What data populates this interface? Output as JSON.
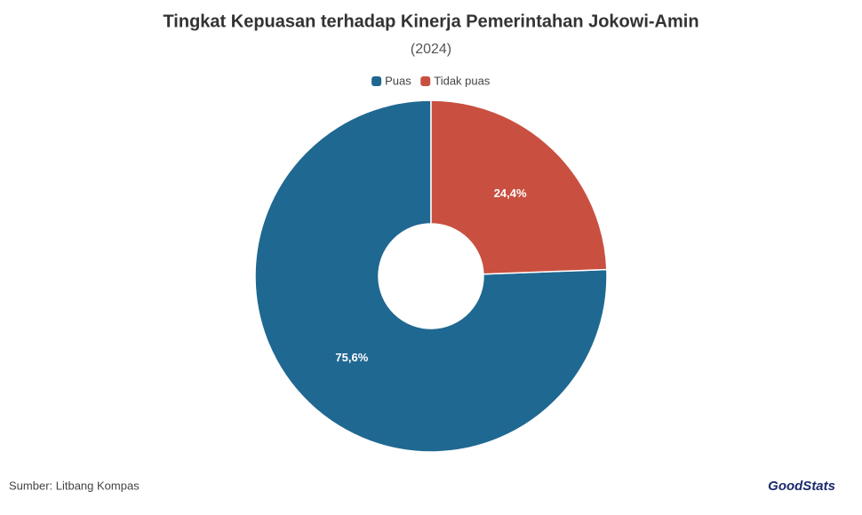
{
  "chart_data": {
    "type": "donut",
    "title": "Tingkat Kepuasan terhadap Kinerja Pemerintahan Jokowi-Amin",
    "subtitle": "(2024)",
    "categories": [
      "Puas",
      "Tidak puas"
    ],
    "values": [
      75.6,
      24.4
    ],
    "value_labels": [
      "75,6%",
      "24,4%"
    ],
    "colors": [
      "#1f6891",
      "#c95040"
    ],
    "legend": "top",
    "source": "Sumber: Litbang Kompas",
    "logo": "GoodStats"
  }
}
